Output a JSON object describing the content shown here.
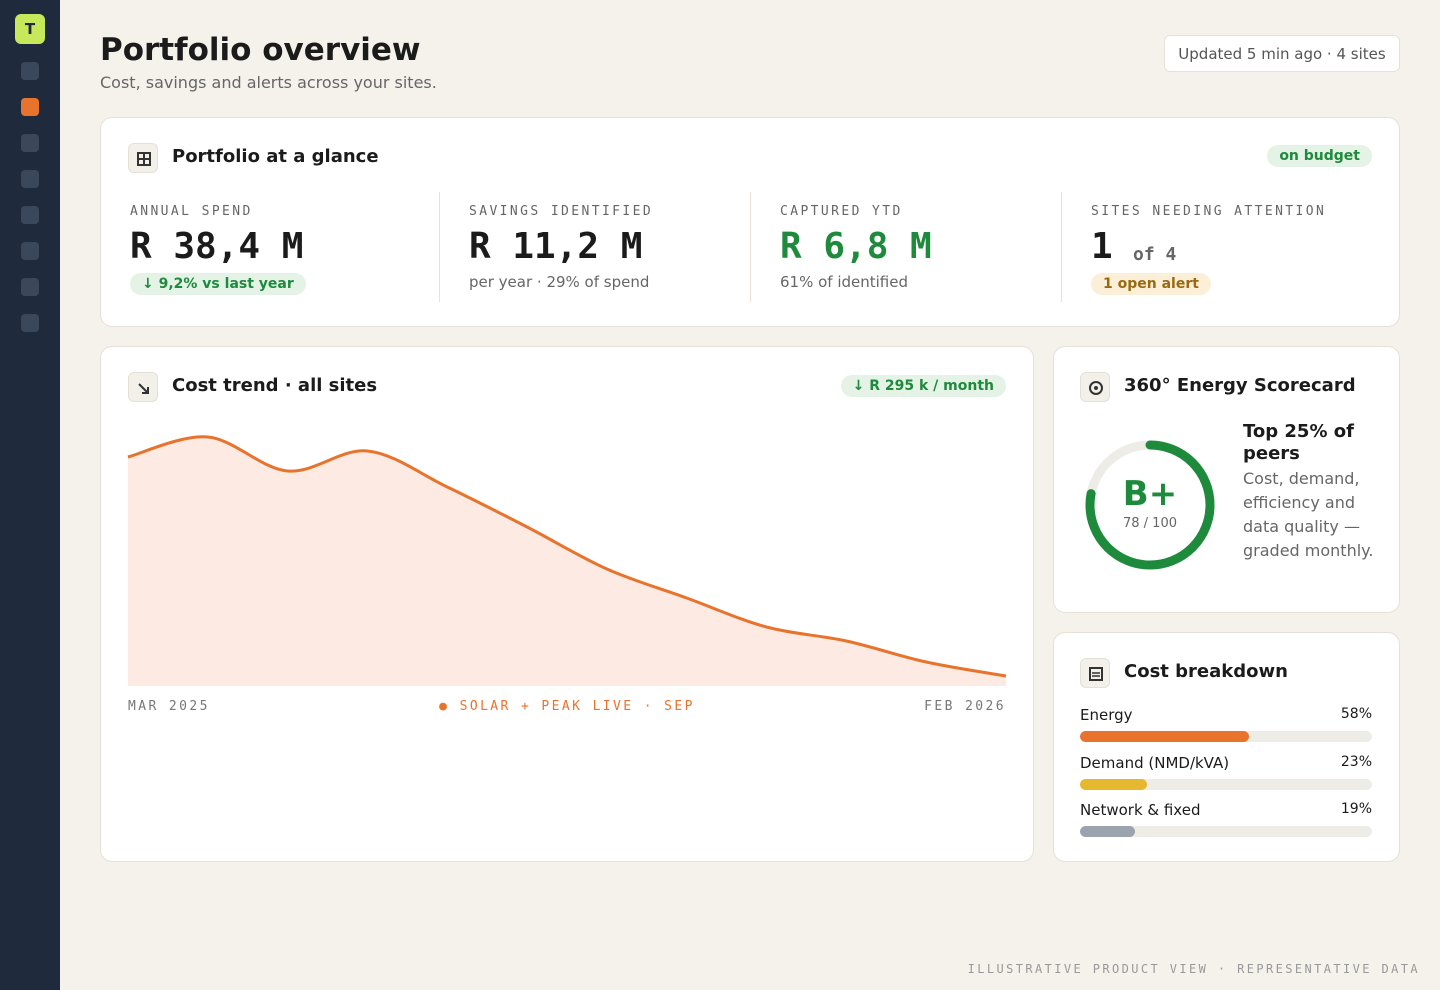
{
  "sidebar": {
    "logo": "T"
  },
  "header": {
    "title": "Portfolio overview",
    "subtitle": "Cost, savings and alerts across your sites.",
    "status": "Updated 5 min ago · 4 sites"
  },
  "glance": {
    "title": "Portfolio at a glance",
    "badge": "on budget",
    "kpis": [
      {
        "label": "ANNUAL SPEND",
        "value": "R 38,4 M",
        "note": "↓ 9,2% vs last year"
      },
      {
        "label": "SAVINGS IDENTIFIED",
        "value": "R 11,2 M",
        "note": "per year · 29% of spend"
      },
      {
        "label": "CAPTURED YTD",
        "value": "R 6,8 M",
        "note": "61% of identified"
      },
      {
        "label": "SITES NEEDING ATTENTION",
        "value": "1",
        "value_suffix": "of 4",
        "note": "1 open alert"
      }
    ]
  },
  "chart_data": {
    "type": "area",
    "title": "Cost trend · all sites",
    "badge": "↓ R 295 k / month",
    "values": [
      229,
      249,
      215,
      235,
      199,
      159,
      117,
      88,
      59,
      45,
      24,
      10
    ],
    "x_start": "MAR 2025",
    "x_end": "FEB 2026",
    "annotation": "● SOLAR + PEAK LIVE · SEP",
    "color": "#e8732c",
    "fill": "#fdebe3"
  },
  "scorecard": {
    "title": "360° Energy Scorecard",
    "grade": "B+",
    "score": {
      "value": 78,
      "label": "78 / 100"
    },
    "score_max": 100,
    "color": "#1e8a3c",
    "headline": "Top 25% of peers",
    "description": "Cost, demand, efficiency and data quality — graded monthly."
  },
  "breakdown": {
    "title": "Cost breakdown",
    "items": [
      {
        "name": "Energy",
        "value": 58,
        "value_label": "58%",
        "color": "#e8732c"
      },
      {
        "name": "Demand (NMD/kVA)",
        "value": 23,
        "value_label": "23%",
        "color": "#e6b830"
      },
      {
        "name": "Network & fixed",
        "value": 19,
        "value_label": "19%",
        "color": "#9aa3ae"
      }
    ]
  },
  "footer": "ILLUSTRATIVE PRODUCT VIEW · REPRESENTATIVE DATA"
}
